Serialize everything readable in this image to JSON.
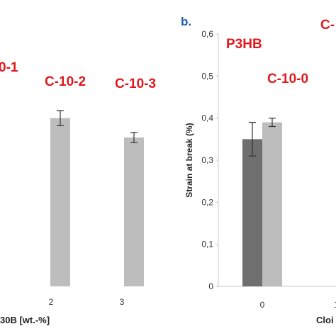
{
  "colors": {
    "axis": "#c8c8c8",
    "annotation": "#e0191f",
    "panel_label": "#1f5fa8",
    "bar_dark": "#6f6f6f",
    "bar_light": "#bdbdbd",
    "error_bar": "#333333"
  },
  "chart_data": [
    {
      "type": "bar",
      "panel": "",
      "xlabel": "30B [wt.-%]",
      "ylabel": "",
      "categories": [
        "2",
        "3"
      ],
      "series": [
        {
          "values": [
            0.4,
            0.354
          ],
          "errors": [
            0.018,
            0.012
          ],
          "shade": "light"
        }
      ],
      "annotations": [
        {
          "text": "0-1",
          "anchor": "left-edge",
          "y": 0.52
        },
        {
          "text": "C-10-2",
          "category": "2",
          "y": 0.49
        },
        {
          "text": "C-10-3",
          "category": "3",
          "y": 0.48
        }
      ]
    },
    {
      "type": "bar",
      "panel": "b.",
      "xlabel": "Cloi",
      "ylabel": "Strain at break (%)",
      "ylim": [
        0,
        0.6
      ],
      "yticks": [
        "0",
        "0,1",
        "0,2",
        "0,3",
        "0,4",
        "0,5",
        "0,6"
      ],
      "categories": [
        "0",
        "1"
      ],
      "series": [
        {
          "values": [
            0.35,
            null
          ],
          "errors": [
            0.04,
            null
          ],
          "shade": "dark"
        },
        {
          "values": [
            0.39,
            null
          ],
          "errors": [
            0.01,
            null
          ],
          "shade": "light"
        }
      ],
      "annotations": [
        {
          "text": "P3HB",
          "y": 0.57
        },
        {
          "text": "C-10-0",
          "y": 0.49
        },
        {
          "text": "C-",
          "y": 0.61
        }
      ]
    }
  ]
}
